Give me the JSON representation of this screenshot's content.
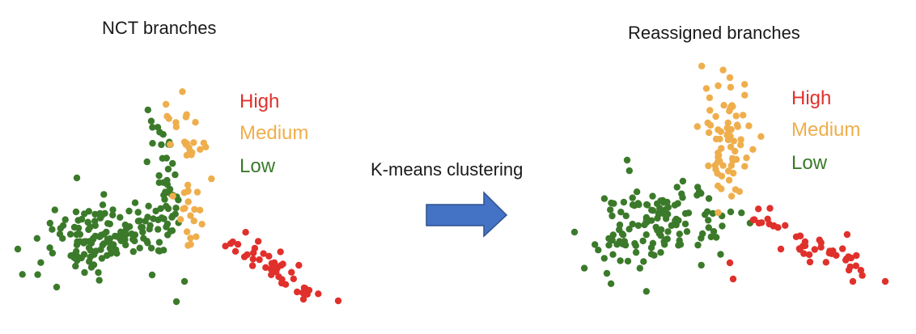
{
  "colors": {
    "high": "#e0302c",
    "medium": "#efae4c",
    "low": "#3b7a2a",
    "arrow": "#4472c4",
    "arrow_stroke": "#2f528f"
  },
  "left_panel": {
    "title": "NCT branches",
    "legend": [
      {
        "label": "High",
        "class": "high"
      },
      {
        "label": "Medium",
        "class": "medium"
      },
      {
        "label": "Low",
        "class": "low"
      }
    ]
  },
  "right_panel": {
    "title": "Reassigned branches",
    "legend": [
      {
        "label": "High",
        "class": "high"
      },
      {
        "label": "Medium",
        "class": "medium"
      },
      {
        "label": "Low",
        "class": "low"
      }
    ]
  },
  "transition": {
    "label": "K-means clustering",
    "icon": "right-arrow-icon"
  }
}
